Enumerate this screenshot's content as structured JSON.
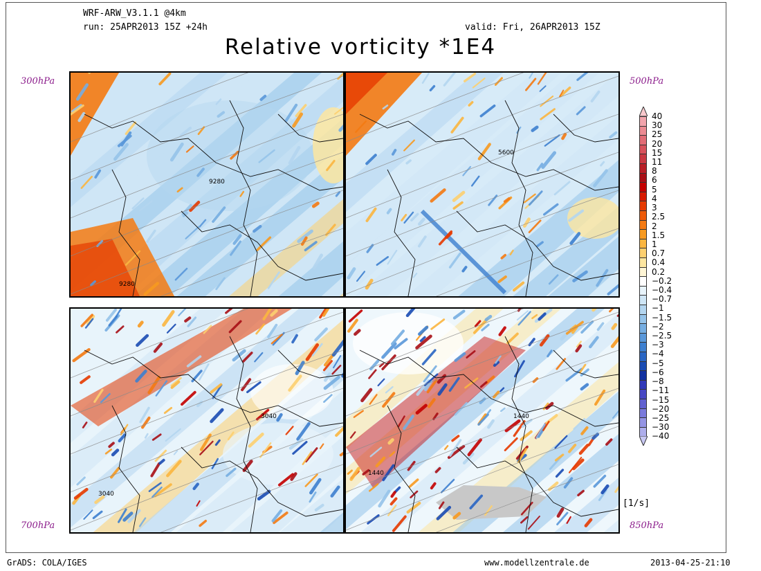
{
  "header": {
    "model": "WRF-ARW_V3.1.1 @4km",
    "run": "run: 25APR2013 15Z +24h",
    "valid": "valid: Fri, 26APR2013 15Z",
    "title": "Relative vorticity *1E4"
  },
  "panels": [
    {
      "id": "p300",
      "level_label": "300hPa",
      "contours": [
        "9280",
        "9280"
      ]
    },
    {
      "id": "p500",
      "level_label": "500hPa",
      "contours": [
        "5600"
      ]
    },
    {
      "id": "p700",
      "level_label": "700hPa",
      "contours": [
        "3040",
        "3040"
      ]
    },
    {
      "id": "p850",
      "level_label": "850hPa",
      "contours": [
        "1440",
        "1440"
      ]
    }
  ],
  "legend": {
    "unit": "[1/s]",
    "levels": [
      "40",
      "30",
      "25",
      "20",
      "15",
      "11",
      "8",
      "6",
      "5",
      "4",
      "3",
      "2.5",
      "2",
      "1.5",
      "1",
      "0.7",
      "0.4",
      "0.2",
      "-0.2",
      "-0.4",
      "-0.7",
      "-1",
      "-1.5",
      "-2",
      "-2.5",
      "-3",
      "-4",
      "-5",
      "-6",
      "-8",
      "-11",
      "-15",
      "-20",
      "-25",
      "-30",
      "-40"
    ],
    "colors": [
      "#f8c8cc",
      "#f2a4ac",
      "#ec8a92",
      "#e26c76",
      "#d8525c",
      "#c93842",
      "#b81e26",
      "#a80f16",
      "#c40000",
      "#d81a00",
      "#e63a00",
      "#ee5a08",
      "#f47a12",
      "#f89a20",
      "#fbb640",
      "#fdd070",
      "#fde6a0",
      "#fff6d6",
      "#ffffff",
      "#e8f4fb",
      "#cfe6f6",
      "#b4d6f0",
      "#96c4ea",
      "#76aee2",
      "#5a98da",
      "#3e80d0",
      "#2a66c4",
      "#1a4cb4",
      "#1030a0",
      "#3038b8",
      "#4848c4",
      "#6060d0",
      "#7a7adc",
      "#9494e4",
      "#aeaeec",
      "#c8c8f4"
    ]
  },
  "footer": {
    "left": "GrADS: COLA/IGES",
    "center": "www.modellzentrale.de",
    "right": "2013-04-25-21:10"
  }
}
